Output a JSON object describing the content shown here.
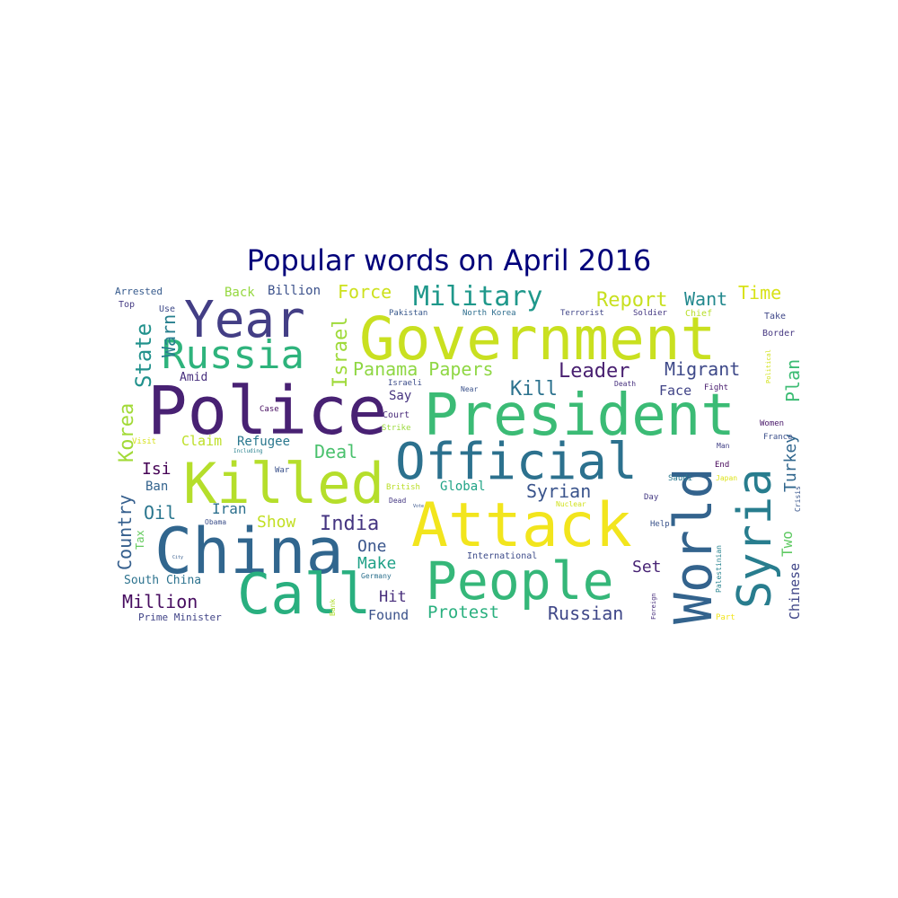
{
  "chart_data": {
    "type": "wordcloud",
    "title": "Popular words on April 2016",
    "title_color": "#00007a",
    "colormap": "viridis",
    "words": [
      {
        "text": "Government",
        "weight": 100,
        "color": "#c9e020"
      },
      {
        "text": "President",
        "weight": 92,
        "color": "#3bbb75"
      },
      {
        "text": "Police",
        "weight": 90,
        "color": "#482173"
      },
      {
        "text": "Attack",
        "weight": 88,
        "color": "#f2e51d"
      },
      {
        "text": "China",
        "weight": 85,
        "color": "#31668e"
      },
      {
        "text": "Official",
        "weight": 84,
        "color": "#2c718e"
      },
      {
        "text": "Killed",
        "weight": 82,
        "color": "#b5de2b"
      },
      {
        "text": "People",
        "weight": 80,
        "color": "#35b779"
      },
      {
        "text": "World",
        "weight": 78,
        "color": "#33638d"
      },
      {
        "text": "Syria",
        "weight": 76,
        "color": "#287d8e"
      },
      {
        "text": "Year",
        "weight": 70,
        "color": "#433e85"
      },
      {
        "text": "Call",
        "weight": 70,
        "color": "#29af7f"
      },
      {
        "text": "Russia",
        "weight": 60,
        "color": "#2eb37c"
      },
      {
        "text": "Military",
        "weight": 45,
        "color": "#1f988b"
      },
      {
        "text": "State",
        "weight": 38,
        "color": "#21918c"
      },
      {
        "text": "Israel",
        "weight": 38,
        "color": "#9fda3a"
      },
      {
        "text": "Panama Papers",
        "weight": 36,
        "color": "#8fd744"
      },
      {
        "text": "Report",
        "weight": 35,
        "color": "#c8e020"
      },
      {
        "text": "Korea",
        "weight": 35,
        "color": "#a2da37"
      },
      {
        "text": "Country",
        "weight": 35,
        "color": "#355f8d"
      },
      {
        "text": "Warn",
        "weight": 34,
        "color": "#277f8e"
      },
      {
        "text": "Force",
        "weight": 32,
        "color": "#cde11d"
      },
      {
        "text": "Time",
        "weight": 32,
        "color": "#d8e219"
      },
      {
        "text": "Leader",
        "weight": 32,
        "color": "#481f70"
      },
      {
        "text": "Migrant",
        "weight": 32,
        "color": "#3e4989"
      },
      {
        "text": "Plan",
        "weight": 32,
        "color": "#3dbc74"
      },
      {
        "text": "Turkey",
        "weight": 32,
        "color": "#31678e"
      },
      {
        "text": "Kill",
        "weight": 30,
        "color": "#2c728e"
      },
      {
        "text": "India",
        "weight": 30,
        "color": "#453581"
      },
      {
        "text": "Syrian",
        "weight": 30,
        "color": "#3a548c"
      },
      {
        "text": "Want",
        "weight": 28,
        "color": "#23898e"
      },
      {
        "text": "Deal",
        "weight": 28,
        "color": "#4ac16d"
      },
      {
        "text": "Million",
        "weight": 28,
        "color": "#470d60"
      },
      {
        "text": "Russian",
        "weight": 28,
        "color": "#3f4788"
      },
      {
        "text": "Protest",
        "weight": 28,
        "color": "#2ab07f"
      },
      {
        "text": "Oil",
        "weight": 28,
        "color": "#2a768e"
      },
      {
        "text": "Two",
        "weight": 26,
        "color": "#5ec962"
      },
      {
        "text": "Chinese",
        "weight": 24,
        "color": "#404688"
      },
      {
        "text": "Show",
        "weight": 24,
        "color": "#c2df23"
      },
      {
        "text": "Make",
        "weight": 24,
        "color": "#1fa187"
      },
      {
        "text": "Isi",
        "weight": 24,
        "color": "#440154"
      },
      {
        "text": "One",
        "weight": 24,
        "color": "#39558c"
      },
      {
        "text": "Set",
        "weight": 22,
        "color": "#482475"
      },
      {
        "text": "Hit",
        "weight": 22,
        "color": "#472d7b"
      },
      {
        "text": "Face",
        "weight": 20,
        "color": "#414487"
      },
      {
        "text": "Iran",
        "weight": 20,
        "color": "#2d708e"
      },
      {
        "text": "Back",
        "weight": 18,
        "color": "#95d840"
      },
      {
        "text": "Billion",
        "weight": 18,
        "color": "#3b518b"
      },
      {
        "text": "Say",
        "weight": 18,
        "color": "#46337f"
      },
      {
        "text": "Amid",
        "weight": 18,
        "color": "#472f7d"
      },
      {
        "text": "Ban",
        "weight": 18,
        "color": "#33638d"
      },
      {
        "text": "Claim",
        "weight": 18,
        "color": "#bddf26"
      },
      {
        "text": "Refugee",
        "weight": 18,
        "color": "#2a778e"
      },
      {
        "text": "Global",
        "weight": 18,
        "color": "#20a386"
      },
      {
        "text": "Tax",
        "weight": 18,
        "color": "#65cb5e"
      },
      {
        "text": "Found",
        "weight": 18,
        "color": "#3b528b"
      },
      {
        "text": "South China",
        "weight": 16,
        "color": "#2c728e"
      },
      {
        "text": "Court",
        "weight": 14,
        "color": "#482979"
      },
      {
        "text": "Prime Minister",
        "weight": 12,
        "color": "#414487"
      },
      {
        "text": "Arrested",
        "weight": 12,
        "color": "#375b8d"
      },
      {
        "text": "Top",
        "weight": 11,
        "color": "#443a83"
      },
      {
        "text": "Use",
        "weight": 11,
        "color": "#3e4a89"
      },
      {
        "text": "Chief",
        "weight": 11,
        "color": "#b8de29"
      },
      {
        "text": "Take",
        "weight": 11,
        "color": "#3f4788"
      },
      {
        "text": "Border",
        "weight": 11,
        "color": "#453781"
      },
      {
        "text": "Women",
        "weight": 10,
        "color": "#481769"
      },
      {
        "text": "France",
        "weight": 10,
        "color": "#3c508b"
      },
      {
        "text": "Man",
        "weight": 10,
        "color": "#424186"
      },
      {
        "text": "End",
        "weight": 10,
        "color": "#450559"
      },
      {
        "text": "Japan",
        "weight": 10,
        "color": "#dde318"
      },
      {
        "text": "Saudi",
        "weight": 10,
        "color": "#2a788e"
      },
      {
        "text": "Day",
        "weight": 10,
        "color": "#443983"
      },
      {
        "text": "Crisis",
        "weight": 9,
        "color": "#39568c"
      },
      {
        "text": "Help",
        "weight": 10,
        "color": "#3a538b"
      },
      {
        "text": "Palestinian",
        "weight": 10,
        "color": "#26828e"
      },
      {
        "text": "Foreign",
        "weight": 9,
        "color": "#472e7c"
      },
      {
        "text": "Part",
        "weight": 10,
        "color": "#f1e51d"
      },
      {
        "text": "Pakistan",
        "weight": 10,
        "color": "#38588c"
      },
      {
        "text": "North Korea",
        "weight": 10,
        "color": "#2e6e8e"
      },
      {
        "text": "Terrorist",
        "weight": 10,
        "color": "#404588"
      },
      {
        "text": "Soldier",
        "weight": 10,
        "color": "#453882"
      },
      {
        "text": "Political",
        "weight": 9,
        "color": "#d2e21b"
      },
      {
        "text": "Israeli",
        "weight": 9,
        "color": "#3d4d8a"
      },
      {
        "text": "Near",
        "weight": 9,
        "color": "#3b528b"
      },
      {
        "text": "Death",
        "weight": 9,
        "color": "#46307e"
      },
      {
        "text": "Fight",
        "weight": 9,
        "color": "#481c6e"
      },
      {
        "text": "Case",
        "weight": 9,
        "color": "#470e61"
      },
      {
        "text": "Strike",
        "weight": 9,
        "color": "#9bd93c"
      },
      {
        "text": "Visit",
        "weight": 9,
        "color": "#d5e21a"
      },
      {
        "text": "Including",
        "weight": 7,
        "color": "#27808e"
      },
      {
        "text": "War",
        "weight": 9,
        "color": "#3b528b"
      },
      {
        "text": "British",
        "weight": 10,
        "color": "#bade28"
      },
      {
        "text": "Dead",
        "weight": 9,
        "color": "#453882"
      },
      {
        "text": "Vote",
        "weight": 6,
        "color": "#39558c"
      },
      {
        "text": "Nuclear",
        "weight": 9,
        "color": "#d0e11c"
      },
      {
        "text": "Obama",
        "weight": 9,
        "color": "#3c4f8a"
      },
      {
        "text": "City",
        "weight": 6,
        "color": "#365c8d"
      },
      {
        "text": "International",
        "weight": 10,
        "color": "#3e4c8a"
      },
      {
        "text": "Germany",
        "weight": 9,
        "color": "#2d718e"
      },
      {
        "text": "Bank",
        "weight": 9,
        "color": "#b0dd2f"
      }
    ]
  }
}
